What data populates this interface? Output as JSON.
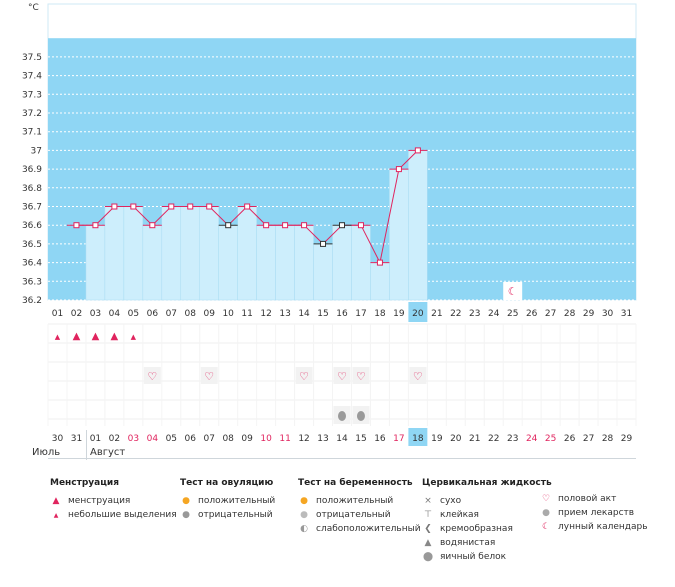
{
  "chart_data": {
    "type": "area",
    "yunit": "°C",
    "ylim": [
      36.2,
      37.6
    ],
    "y_ticks": [
      "37.5",
      "37.4",
      "37.3",
      "37.2",
      "37.1",
      "37",
      "36.9",
      "36.8",
      "36.7",
      "36.6",
      "36.5",
      "36.4",
      "36.3",
      "36.2"
    ],
    "x_top": [
      "01",
      "02",
      "03",
      "04",
      "05",
      "06",
      "07",
      "08",
      "09",
      "10",
      "11",
      "12",
      "13",
      "14",
      "15",
      "16",
      "17",
      "18",
      "19",
      "20",
      "21",
      "22",
      "23",
      "24",
      "25",
      "26",
      "27",
      "28",
      "29",
      "30",
      "31"
    ],
    "x_bottom": [
      "30",
      "31",
      "01",
      "02",
      "03",
      "04",
      "05",
      "06",
      "07",
      "08",
      "09",
      "10",
      "11",
      "12",
      "13",
      "14",
      "15",
      "16",
      "17",
      "18",
      "19",
      "20",
      "21",
      "22",
      "23",
      "24",
      "25",
      "26",
      "27",
      "28",
      "29"
    ],
    "x_bottom_red": [
      4,
      5,
      11,
      12,
      18,
      25,
      26
    ],
    "highlight_index": 19,
    "temperatures": [
      36.6,
      36.6,
      36.7,
      36.7,
      36.6,
      36.7,
      36.7,
      36.7,
      36.6,
      36.7,
      36.6,
      36.6,
      36.6,
      36.5,
      36.6,
      36.6,
      36.4,
      36.9,
      37.0
    ],
    "special_markers": [
      8,
      13,
      14
    ],
    "moon_index": 24,
    "menstruation": [
      "small",
      "full",
      "full",
      "full",
      "small"
    ],
    "intercourse_days": [
      5,
      8,
      13,
      15,
      16,
      19
    ],
    "pregnancy_test_days": [
      15,
      16
    ],
    "months": [
      "Июль",
      "Август"
    ],
    "colors": {
      "band": "#8fd6f4",
      "fill": "#cdeefc",
      "line": "#e0245e",
      "highlight": "#8fd6f4"
    }
  },
  "legend": {
    "menstruation": {
      "title": "Менструация",
      "items": [
        "менструация",
        "небольшие выделения"
      ]
    },
    "ovulation": {
      "title": "Тест на овуляцию",
      "items": [
        "положительный",
        "отрицательный"
      ]
    },
    "pregnancy": {
      "title": "Тест на беременность",
      "items": [
        "положительный",
        "отрицательный",
        "слабоположительный"
      ]
    },
    "cervical": {
      "title": "Цервикальная жидкость",
      "items": [
        "сухо",
        "клейкая",
        "кремообразная",
        "водянистая",
        "яичный белок"
      ]
    },
    "other": {
      "items": [
        "половой акт",
        "прием лекарств",
        "лунный календарь"
      ]
    }
  }
}
